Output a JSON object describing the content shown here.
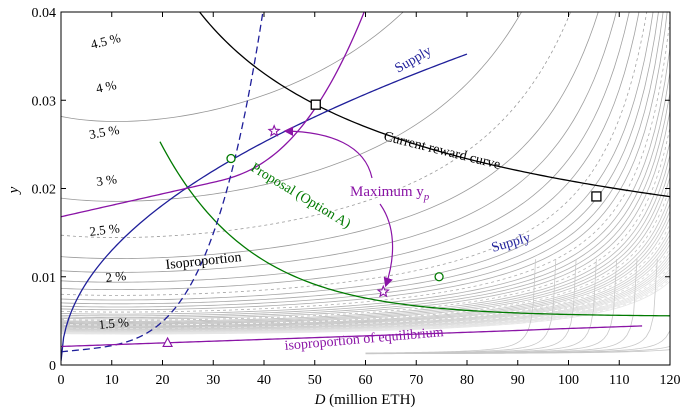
{
  "chart_data": {
    "type": "line",
    "xlabel_var": "D",
    "xlabel_unit": "(million ETH)",
    "ylabel": "y",
    "xlim": [
      0,
      120
    ],
    "ylim": [
      0,
      0.04
    ],
    "x_ticks": [
      0,
      10,
      20,
      30,
      40,
      50,
      60,
      70,
      80,
      90,
      100,
      110,
      120
    ],
    "y_ticks": [
      0,
      0.01,
      0.02,
      0.03,
      0.04
    ],
    "x_tick_labels": [
      "0",
      "10",
      "20",
      "30",
      "40",
      "50",
      "60",
      "70",
      "80",
      "90",
      "100",
      "110",
      "120"
    ],
    "y_tick_labels": [
      "0",
      "0.01",
      "0.02",
      "0.03",
      "0.04"
    ],
    "contour_labels": [
      "4.5 %",
      "4 %",
      "3.5 %",
      "3 %",
      "2.5 %",
      "2 %",
      "1.5 %"
    ],
    "series": [
      {
        "name": "Current reward curve",
        "color": "#000000",
        "dashed": false
      },
      {
        "name": "Proposal (Option A)",
        "color": "#007a00",
        "dashed": false
      },
      {
        "name": "Supply",
        "color": "#1f1f9a",
        "dashed": false
      },
      {
        "name": "Supply",
        "color": "#1f1f9a",
        "dashed": true
      },
      {
        "name": "Isoproportion",
        "color": "#8a14a6",
        "dashed": false
      },
      {
        "name": "isoproportion of equilibrium",
        "color": "#8a14a6",
        "dashed": false
      }
    ],
    "equilibria": [
      {
        "x": 50.2,
        "y": 0.0295,
        "marker": "square"
      },
      {
        "x": 105.5,
        "y": 0.0191,
        "marker": "square"
      },
      {
        "x": 33.5,
        "y": 0.0234,
        "marker": "circle"
      },
      {
        "x": 74.5,
        "y": 0.01,
        "marker": "circle"
      },
      {
        "x": 42.0,
        "y": 0.0265,
        "marker": "star"
      },
      {
        "x": 63.5,
        "y": 0.0083,
        "marker": "star"
      },
      {
        "x": 21.0,
        "y": 0.0025,
        "marker": "triangle"
      }
    ],
    "annotations": {
      "maximum_label": "Maximum y",
      "maximum_sub": "p"
    }
  }
}
